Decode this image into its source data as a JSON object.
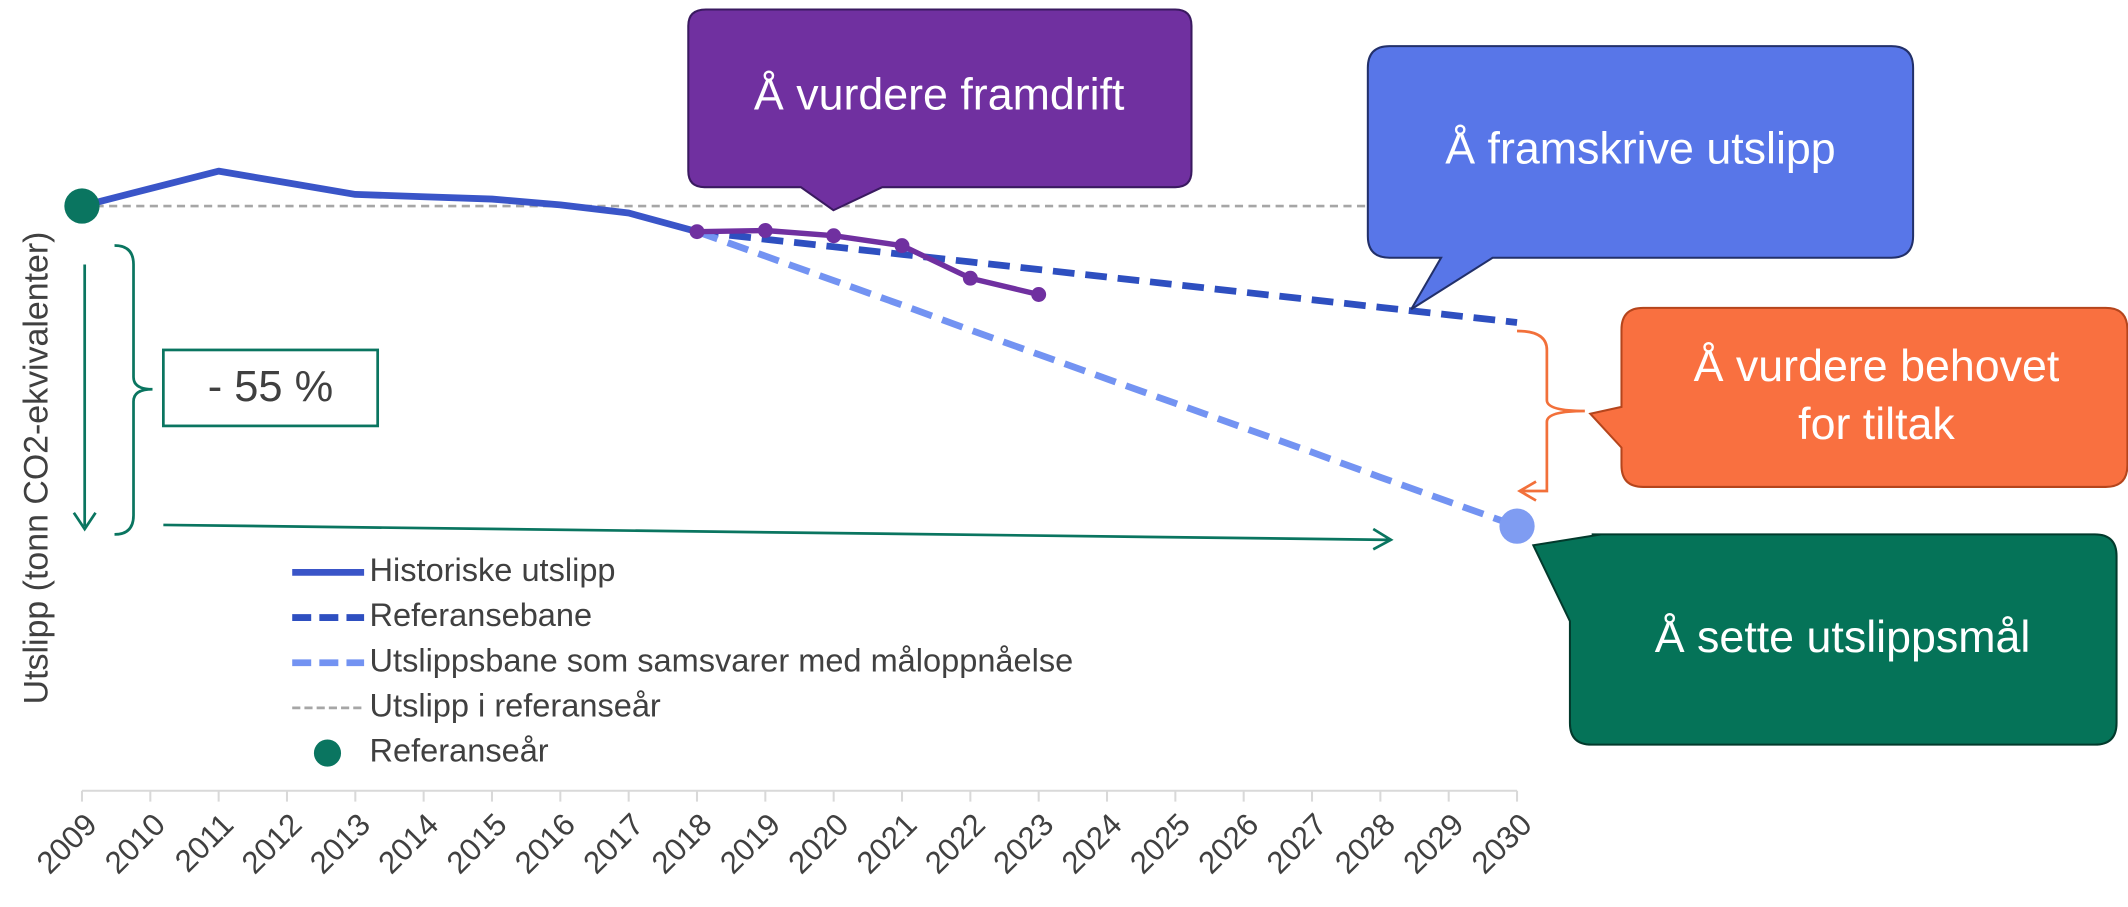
{
  "chart_data": {
    "type": "line",
    "y_label": "Utslipp (tonn CO2-ekvivalenter)",
    "categories": [
      "2009",
      "2010",
      "2011",
      "2012",
      "2013",
      "2014",
      "2015",
      "2016",
      "2017",
      "2018",
      "2019",
      "2020",
      "2021",
      "2022",
      "2023",
      "2024",
      "2025",
      "2026",
      "2027",
      "2028",
      "2029",
      "2030"
    ],
    "ylim": [
      0,
      110
    ],
    "series": [
      {
        "name": "Historiske utslipp",
        "color": "#3a55c8",
        "dash": false,
        "values": [
          100,
          103,
          106,
          104,
          102,
          101.6,
          101.2,
          100.2,
          98.8,
          95.6,
          null,
          null,
          null,
          null,
          null,
          null,
          null,
          null,
          null,
          null,
          null,
          null
        ]
      },
      {
        "name": "Referansebane",
        "color": "#2e4fc0",
        "dash": true,
        "values": [
          null,
          null,
          null,
          null,
          null,
          null,
          null,
          null,
          null,
          95.6,
          94.3,
          93.0,
          91.7,
          90.4,
          89.1,
          87.8,
          86.5,
          85.2,
          83.9,
          82.6,
          81.3,
          80.0
        ]
      },
      {
        "name": "Utslippsbane som samsvarer med måloppnåelse",
        "color": "#7393f2",
        "dash": true,
        "values": [
          null,
          null,
          null,
          null,
          null,
          null,
          null,
          null,
          null,
          95.6,
          91.4,
          87.2,
          83.0,
          78.7,
          74.5,
          70.3,
          66.1,
          61.9,
          57.7,
          53.4,
          49.2,
          45.0
        ]
      },
      {
        "color": "#7030a0",
        "dash": false,
        "markers": true,
        "values": [
          null,
          null,
          null,
          null,
          null,
          null,
          null,
          null,
          null,
          95.6,
          95.8,
          94.9,
          93.2,
          87.6,
          84.8,
          null,
          null,
          null,
          null,
          null,
          null,
          null
        ]
      }
    ],
    "reference_line": {
      "name": "Utslipp i referanseår",
      "value": 100,
      "color": "#a6a6a6"
    },
    "reference_point": {
      "name": "Referanseår",
      "x": "2009",
      "value": 100,
      "color": "#0a7560"
    },
    "target_point": {
      "x": "2030",
      "value": 45,
      "color": "#7f9cf2"
    },
    "annotations": {
      "reduction": "- 55 %",
      "progress": "Å vurdere framdrift",
      "projection": "Å framskrive utslipp",
      "measures": [
        "Å vurdere behovet",
        "for tiltak"
      ],
      "target": "Å sette utslippsmål"
    }
  }
}
